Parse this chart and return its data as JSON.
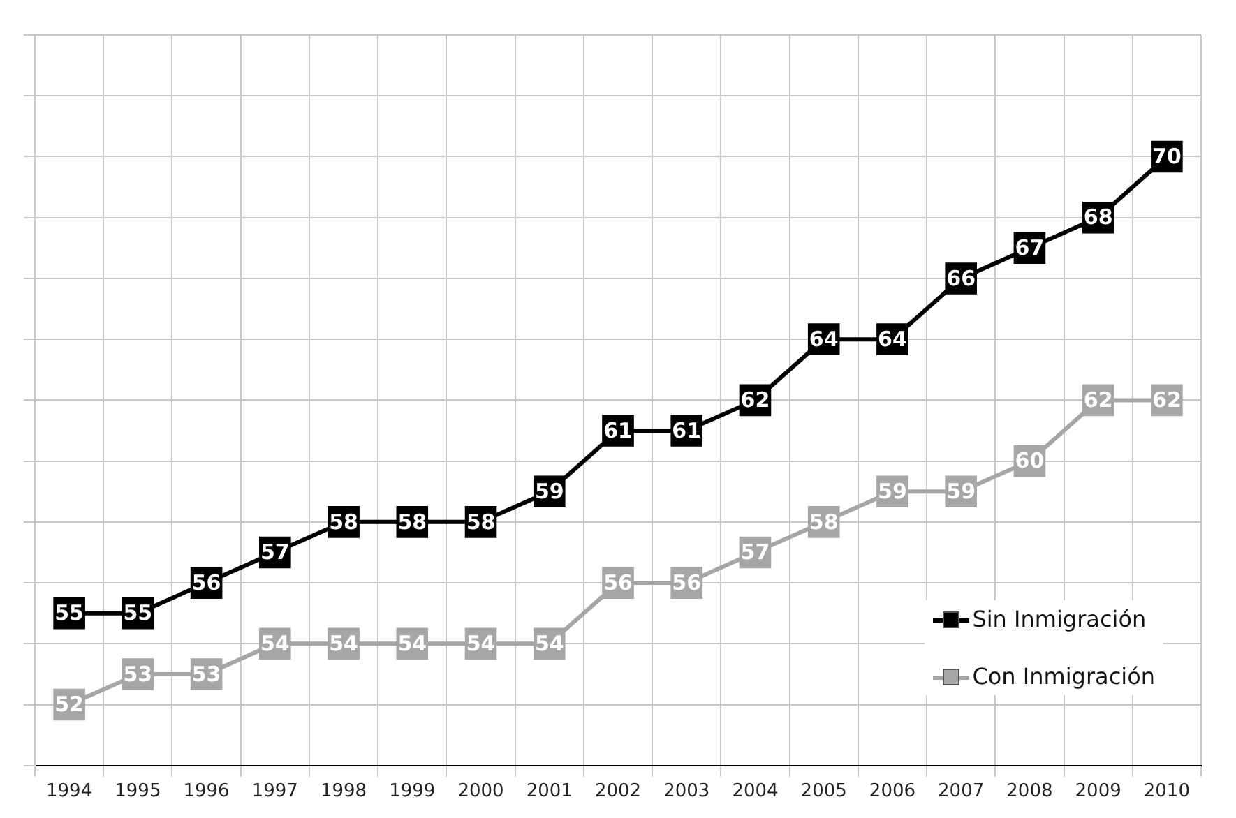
{
  "chart_data": {
    "type": "line",
    "categories": [
      "1994",
      "1995",
      "1996",
      "1997",
      "1998",
      "1999",
      "2000",
      "2001",
      "2002",
      "2003",
      "2004",
      "2005",
      "2006",
      "2007",
      "2008",
      "2009",
      "2010"
    ],
    "series": [
      {
        "name": "Sin Inmigración",
        "color": "#000000",
        "values": [
          55,
          55,
          56,
          57,
          58,
          58,
          58,
          59,
          61,
          61,
          62,
          64,
          64,
          66,
          67,
          68,
          70
        ]
      },
      {
        "name": "Con Inmigración",
        "color": "#a6a6a6",
        "values": [
          52,
          53,
          53,
          54,
          54,
          54,
          54,
          54,
          56,
          56,
          57,
          58,
          59,
          59,
          60,
          62,
          62
        ]
      }
    ],
    "ylim": [
      50,
      74
    ],
    "yticks": [
      {
        "value": 50,
        "label": null
      },
      {
        "value": 52,
        "label": null
      },
      {
        "value": 54,
        "label": null
      },
      {
        "value": 56,
        "label": null
      },
      {
        "value": 58,
        "label": null
      },
      {
        "value": 60,
        "label": null
      },
      {
        "value": 62,
        "label": null
      },
      {
        "value": 64,
        "label": null
      },
      {
        "value": 66,
        "label": null
      },
      {
        "value": 68,
        "label": null
      },
      {
        "value": 70,
        "label": null
      },
      {
        "value": 72,
        "label": null
      },
      {
        "value": 74,
        "label": null
      }
    ],
    "tick_labels": "x",
    "grid": true,
    "legend": "bottom right",
    "marker": "square",
    "data_labels": true
  }
}
